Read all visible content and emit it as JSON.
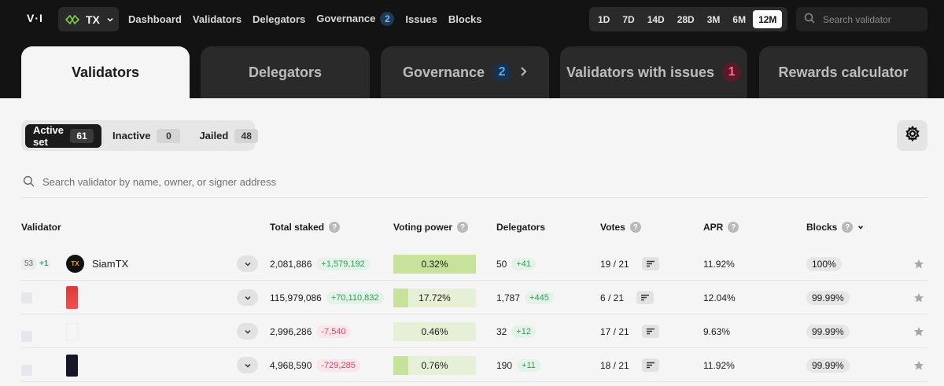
{
  "header": {
    "logo_text": "V·I",
    "network": {
      "label": "TX",
      "icon": "tx-network-icon"
    },
    "nav": [
      {
        "label": "Dashboard"
      },
      {
        "label": "Validators"
      },
      {
        "label": "Delegators"
      },
      {
        "label": "Governance",
        "badge": "2"
      },
      {
        "label": "Issues"
      },
      {
        "label": "Blocks"
      }
    ],
    "ranges": [
      "1D",
      "7D",
      "14D",
      "28D",
      "3M",
      "6M",
      "12M"
    ],
    "active_range": "12M",
    "search_placeholder": "Search validator"
  },
  "tabs": [
    {
      "label": "Validators",
      "active": true
    },
    {
      "label": "Delegators"
    },
    {
      "label": "Governance",
      "badge": "2",
      "badge_color": "#5aa8ff"
    },
    {
      "label": "Validators with issues",
      "badge": "1",
      "badge_color": "#ff6b8a"
    },
    {
      "label": "Rewards calculator"
    }
  ],
  "filters": [
    {
      "label": "Active set",
      "count": "61",
      "active": true
    },
    {
      "label": "Inactive",
      "count": "0"
    },
    {
      "label": "Jailed",
      "count": "48"
    }
  ],
  "search_placeholder": "Search validator by name, owner, or signer address",
  "columns": {
    "validator": "Validator",
    "total_staked": "Total staked",
    "voting_power": "Voting power",
    "delegators": "Delegators",
    "votes": "Votes",
    "apr": "APR",
    "blocks": "Blocks"
  },
  "rows": [
    {
      "rank": "53",
      "rank_change": "+1",
      "name": "SiamTX",
      "avatar_text": "TX",
      "staked": "2,081,886",
      "staked_delta": "+1,579,192",
      "staked_delta_sign": "pos",
      "voting_power": "0.32%",
      "vp_fraction": 0.0032,
      "delegators": "50",
      "delegators_delta": "+41",
      "votes": "19 / 21",
      "apr": "11.92%",
      "blocks": "100%"
    },
    {
      "rank": "",
      "rank_change": "",
      "name": "",
      "avatar_text": "",
      "staked": "115,979,086",
      "staked_delta": "+70,110,832",
      "staked_delta_sign": "pos",
      "voting_power": "17.72%",
      "vp_fraction": 0.1772,
      "delegators": "1,787",
      "delegators_delta": "+445",
      "votes": "6 / 21",
      "apr": "12.04%",
      "blocks": "99.99%"
    },
    {
      "rank": "",
      "rank_change": "",
      "name": "",
      "avatar_text": "",
      "staked": "2,996,286",
      "staked_delta": "-7,540",
      "staked_delta_sign": "neg",
      "voting_power": "0.46%",
      "vp_fraction": 0.0046,
      "delegators": "32",
      "delegators_delta": "+12",
      "votes": "17 / 21",
      "apr": "9.63%",
      "blocks": "99.99%"
    },
    {
      "rank": "",
      "rank_change": "",
      "name": "",
      "avatar_text": "",
      "staked": "4,968,590",
      "staked_delta": "-729,285",
      "staked_delta_sign": "neg",
      "voting_power": "0.76%",
      "vp_fraction": 0.0076,
      "delegators": "190",
      "delegators_delta": "+11",
      "votes": "18 / 21",
      "apr": "11.92%",
      "blocks": "99.99%"
    }
  ]
}
